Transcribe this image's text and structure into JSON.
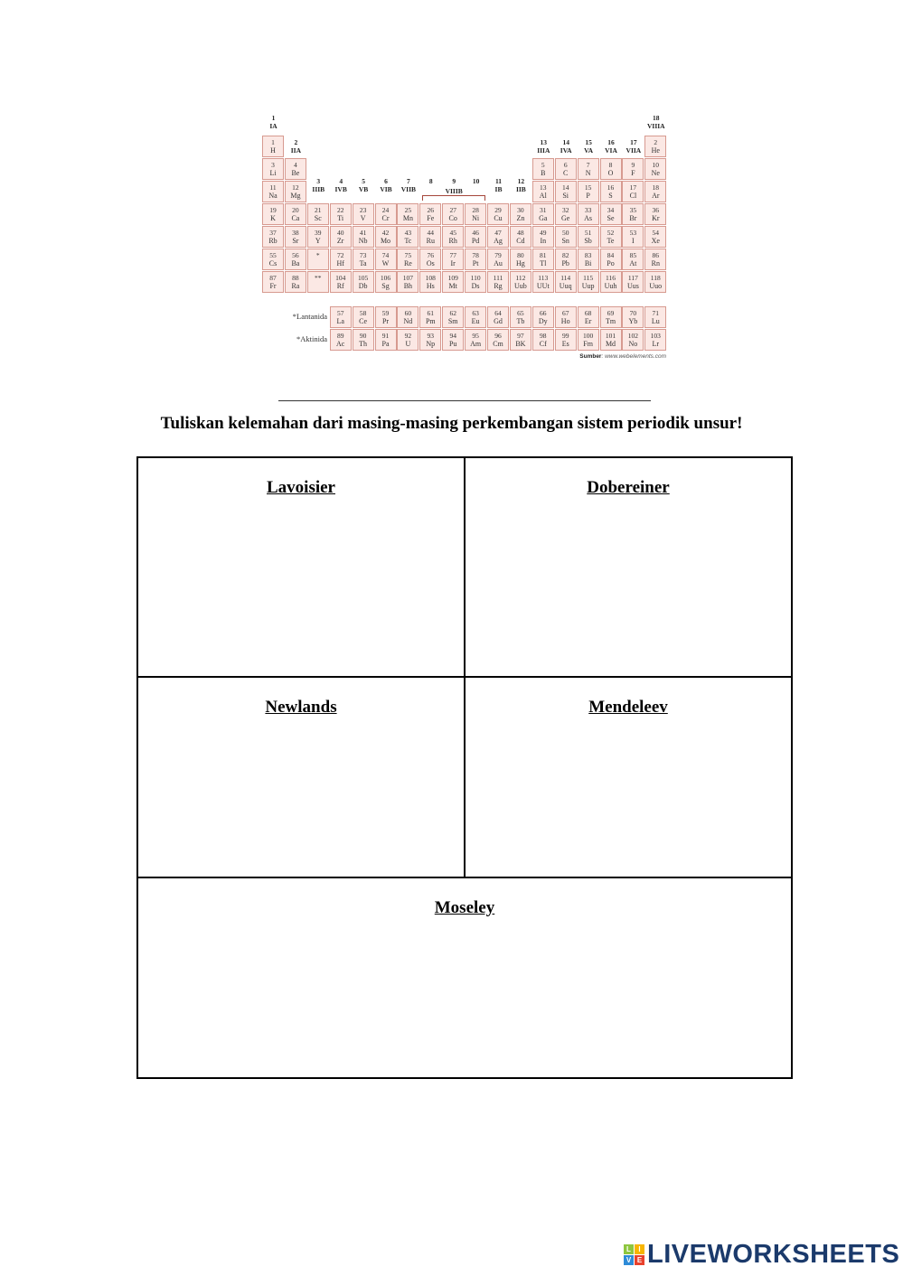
{
  "periodic_table": {
    "group_labels": [
      {
        "group": 1,
        "num": "1",
        "roman": "IA"
      },
      {
        "group": 2,
        "num": "2",
        "roman": "IIA"
      },
      {
        "group": 3,
        "num": "3",
        "roman": "IIIB"
      },
      {
        "group": 4,
        "num": "4",
        "roman": "IVB"
      },
      {
        "group": 5,
        "num": "5",
        "roman": "VB"
      },
      {
        "group": 6,
        "num": "6",
        "roman": "VIB"
      },
      {
        "group": 7,
        "num": "7",
        "roman": "VIIB"
      },
      {
        "group": 8,
        "num": "8",
        "roman": ""
      },
      {
        "group": 9,
        "num": "9",
        "roman": "VIIIB"
      },
      {
        "group": 10,
        "num": "10",
        "roman": ""
      },
      {
        "group": 11,
        "num": "11",
        "roman": "IB"
      },
      {
        "group": 12,
        "num": "12",
        "roman": "IIB"
      },
      {
        "group": 13,
        "num": "13",
        "roman": "IIIA"
      },
      {
        "group": 14,
        "num": "14",
        "roman": "IVA"
      },
      {
        "group": 15,
        "num": "15",
        "roman": "VA"
      },
      {
        "group": 16,
        "num": "16",
        "roman": "VIA"
      },
      {
        "group": 17,
        "num": "17",
        "roman": "VIIA"
      },
      {
        "group": 18,
        "num": "18",
        "roman": "VIIIA"
      }
    ],
    "periods": [
      [
        [
          "1",
          "H"
        ],
        null,
        null,
        null,
        null,
        null,
        null,
        null,
        null,
        null,
        null,
        null,
        null,
        null,
        null,
        null,
        null,
        [
          "2",
          "He"
        ]
      ],
      [
        [
          "3",
          "Li"
        ],
        [
          "4",
          "Be"
        ],
        null,
        null,
        null,
        null,
        null,
        null,
        null,
        null,
        null,
        null,
        [
          "5",
          "B"
        ],
        [
          "6",
          "C"
        ],
        [
          "7",
          "N"
        ],
        [
          "8",
          "O"
        ],
        [
          "9",
          "F"
        ],
        [
          "10",
          "Ne"
        ]
      ],
      [
        [
          "11",
          "Na"
        ],
        [
          "12",
          "Mg"
        ],
        null,
        null,
        null,
        null,
        null,
        null,
        null,
        null,
        null,
        null,
        [
          "13",
          "Al"
        ],
        [
          "14",
          "Si"
        ],
        [
          "15",
          "P"
        ],
        [
          "16",
          "S"
        ],
        [
          "17",
          "Cl"
        ],
        [
          "18",
          "Ar"
        ]
      ],
      [
        [
          "19",
          "K"
        ],
        [
          "20",
          "Ca"
        ],
        [
          "21",
          "Sc"
        ],
        [
          "22",
          "Ti"
        ],
        [
          "23",
          "V"
        ],
        [
          "24",
          "Cr"
        ],
        [
          "25",
          "Mn"
        ],
        [
          "26",
          "Fe"
        ],
        [
          "27",
          "Co"
        ],
        [
          "28",
          "Ni"
        ],
        [
          "29",
          "Cu"
        ],
        [
          "30",
          "Zn"
        ],
        [
          "31",
          "Ga"
        ],
        [
          "32",
          "Ge"
        ],
        [
          "33",
          "As"
        ],
        [
          "34",
          "Se"
        ],
        [
          "35",
          "Br"
        ],
        [
          "36",
          "Kr"
        ]
      ],
      [
        [
          "37",
          "Rb"
        ],
        [
          "38",
          "Sr"
        ],
        [
          "39",
          "Y"
        ],
        [
          "40",
          "Zr"
        ],
        [
          "41",
          "Nb"
        ],
        [
          "42",
          "Mo"
        ],
        [
          "43",
          "Tc"
        ],
        [
          "44",
          "Ru"
        ],
        [
          "45",
          "Rh"
        ],
        [
          "46",
          "Pd"
        ],
        [
          "47",
          "Ag"
        ],
        [
          "48",
          "Cd"
        ],
        [
          "49",
          "In"
        ],
        [
          "50",
          "Sn"
        ],
        [
          "51",
          "Sb"
        ],
        [
          "52",
          "Te"
        ],
        [
          "53",
          "I"
        ],
        [
          "54",
          "Xe"
        ]
      ],
      [
        [
          "55",
          "Cs"
        ],
        [
          "56",
          "Ba"
        ],
        [
          "*",
          ""
        ],
        [
          "72",
          "Hf"
        ],
        [
          "73",
          "Ta"
        ],
        [
          "74",
          "W"
        ],
        [
          "75",
          "Re"
        ],
        [
          "76",
          "Os"
        ],
        [
          "77",
          "Ir"
        ],
        [
          "78",
          "Pt"
        ],
        [
          "79",
          "Au"
        ],
        [
          "80",
          "Hg"
        ],
        [
          "81",
          "Tl"
        ],
        [
          "82",
          "Pb"
        ],
        [
          "83",
          "Bi"
        ],
        [
          "84",
          "Po"
        ],
        [
          "85",
          "At"
        ],
        [
          "86",
          "Rn"
        ]
      ],
      [
        [
          "87",
          "Fr"
        ],
        [
          "88",
          "Ra"
        ],
        [
          "**",
          ""
        ],
        [
          "104",
          "Rf"
        ],
        [
          "105",
          "Db"
        ],
        [
          "106",
          "Sg"
        ],
        [
          "107",
          "Bh"
        ],
        [
          "108",
          "Hs"
        ],
        [
          "109",
          "Mt"
        ],
        [
          "110",
          "Ds"
        ],
        [
          "111",
          "Rg"
        ],
        [
          "112",
          "Uub"
        ],
        [
          "113",
          "UUt"
        ],
        [
          "114",
          "Uuq"
        ],
        [
          "115",
          "Uup"
        ],
        [
          "116",
          "Uuh"
        ],
        [
          "117",
          "Uus"
        ],
        [
          "118",
          "Uuo"
        ]
      ]
    ],
    "lanthanide_label": "*Lantanida",
    "lanthanides": [
      [
        "57",
        "La"
      ],
      [
        "58",
        "Ce"
      ],
      [
        "59",
        "Pr"
      ],
      [
        "60",
        "Nd"
      ],
      [
        "61",
        "Pm"
      ],
      [
        "62",
        "Sm"
      ],
      [
        "63",
        "Eu"
      ],
      [
        "64",
        "Gd"
      ],
      [
        "65",
        "Tb"
      ],
      [
        "66",
        "Dy"
      ],
      [
        "67",
        "Ho"
      ],
      [
        "68",
        "Er"
      ],
      [
        "69",
        "Tm"
      ],
      [
        "70",
        "Yb"
      ],
      [
        "71",
        "Lu"
      ]
    ],
    "actinide_label": "*Aktinida",
    "actinides": [
      [
        "89",
        "Ac"
      ],
      [
        "90",
        "Th"
      ],
      [
        "91",
        "Pa"
      ],
      [
        "92",
        "U"
      ],
      [
        "93",
        "Np"
      ],
      [
        "94",
        "Pu"
      ],
      [
        "95",
        "Am"
      ],
      [
        "96",
        "Cm"
      ],
      [
        "97",
        "BK"
      ],
      [
        "98",
        "Cf"
      ],
      [
        "99",
        "Es"
      ],
      [
        "100",
        "Fm"
      ],
      [
        "101",
        "Md"
      ],
      [
        "102",
        "No"
      ],
      [
        "103",
        "Lr"
      ]
    ],
    "source_label": "Sumber",
    "source_text": ": www.webelements.com",
    "colors": {
      "cell_fill": "#fbe8e4",
      "cell_border": "#d79a90"
    }
  },
  "instruction": "Tuliskan kelemahan dari masing-masing perkembangan sistem periodik unsur!",
  "answer_boxes": [
    {
      "title": "Lavoisier",
      "value": ""
    },
    {
      "title": "Dobereiner",
      "value": ""
    },
    {
      "title": "Newlands",
      "value": ""
    },
    {
      "title": "Mendeleev",
      "value": ""
    },
    {
      "title": "Moseley",
      "value": ""
    }
  ],
  "logo": {
    "tiles": [
      "L",
      "I",
      "V",
      "E"
    ],
    "word": "LIVEWORKSHEETS",
    "tile_colors": [
      "#8dc63f",
      "#f7b500",
      "#2e8bd8",
      "#e8412c"
    ],
    "text_color": "#1b3a6b"
  }
}
